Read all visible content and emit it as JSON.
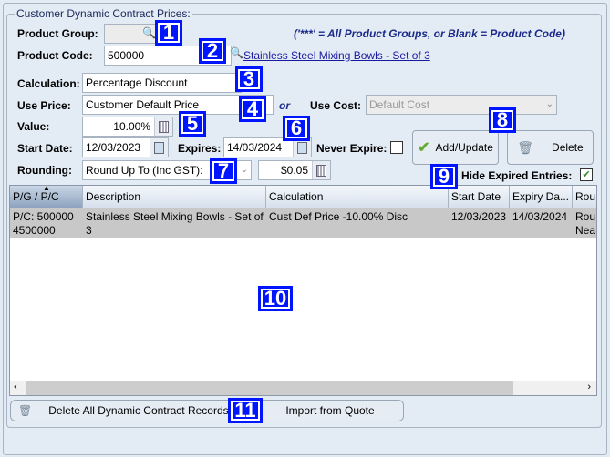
{
  "group_title": "Customer Dynamic Contract Prices:",
  "product_group": {
    "label": "Product Group:",
    "value": ""
  },
  "note": "('***' = All Product Groups, or Blank = Product Code)",
  "product_code": {
    "label": "Product Code:",
    "value": "500000",
    "link": "Stainless Steel Mixing Bowls - Set of 3"
  },
  "calculation": {
    "label": "Calculation:",
    "value": "Percentage Discount"
  },
  "use_price": {
    "label": "Use Price:",
    "value": "Customer Default Price"
  },
  "or_label": "or",
  "use_cost": {
    "label": "Use Cost:",
    "value": "Default Cost"
  },
  "value": {
    "label": "Value:",
    "value": "10.00%"
  },
  "start_date": {
    "label": "Start Date:",
    "value": "12/03/2023"
  },
  "expires": {
    "label": "Expires:",
    "value": "14/03/2024"
  },
  "never_expire": {
    "label": "Never Expire:",
    "checked": false
  },
  "rounding": {
    "label": "Rounding:",
    "value": "Round Up To (Inc GST):",
    "amount": "$0.05"
  },
  "buttons": {
    "add_update": "Add/Update",
    "delete": "Delete",
    "delete_all": "Delete All Dynamic Contract Records",
    "import": "Import from Quote"
  },
  "hide_expired": {
    "label": "Hide Expired Entries:",
    "checked": true
  },
  "table": {
    "columns": [
      "P/G / P/C",
      "Description",
      "Calculation",
      "Start Date",
      "Expiry Da...",
      "Rou"
    ],
    "rows": [
      [
        "P/C: 500000\n4500000",
        "Stainless Steel Mixing Bowls - Set of 3",
        "Cust Def Price -10.00% Disc",
        "12/03/2023",
        "14/03/2024",
        "Rou Nea"
      ]
    ]
  },
  "badges": [
    "1",
    "2",
    "3",
    "4",
    "5",
    "6",
    "7",
    "8",
    "9",
    "10",
    "11"
  ],
  "colors": {
    "badge": "#0015ff",
    "link": "#1a1aa0",
    "note": "#1b2a8a",
    "background": "#e3ebf5"
  }
}
